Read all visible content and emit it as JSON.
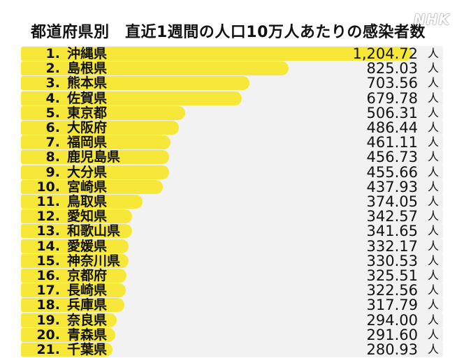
{
  "header": {
    "title": "都道府県別　直近1週間の人口10万人あたりの感染者数",
    "watermark": "NHK"
  },
  "chart_data": {
    "type": "bar",
    "orientation": "horizontal",
    "title": "都道府県別　直近1週間の人口10万人あたりの感染者数",
    "unit": "人",
    "xlim": [
      0,
      1300
    ],
    "rows": [
      {
        "rank": "1.",
        "prefecture": "沖縄県",
        "value": 1204.72,
        "label": "1,204.72"
      },
      {
        "rank": "2.",
        "prefecture": "島根県",
        "value": 825.03,
        "label": "825.03"
      },
      {
        "rank": "3.",
        "prefecture": "熊本県",
        "value": 703.56,
        "label": "703.56"
      },
      {
        "rank": "4.",
        "prefecture": "佐賀県",
        "value": 679.78,
        "label": "679.78"
      },
      {
        "rank": "5.",
        "prefecture": "東京都",
        "value": 506.31,
        "label": "506.31"
      },
      {
        "rank": "6.",
        "prefecture": "大阪府",
        "value": 486.44,
        "label": "486.44"
      },
      {
        "rank": "7.",
        "prefecture": "福岡県",
        "value": 461.11,
        "label": "461.11"
      },
      {
        "rank": "8.",
        "prefecture": "鹿児島県",
        "value": 456.73,
        "label": "456.73"
      },
      {
        "rank": "9.",
        "prefecture": "大分県",
        "value": 455.66,
        "label": "455.66"
      },
      {
        "rank": "10.",
        "prefecture": "宮崎県",
        "value": 437.93,
        "label": "437.93"
      },
      {
        "rank": "11.",
        "prefecture": "鳥取県",
        "value": 374.05,
        "label": "374.05"
      },
      {
        "rank": "12.",
        "prefecture": "愛知県",
        "value": 342.57,
        "label": "342.57"
      },
      {
        "rank": "13.",
        "prefecture": "和歌山県",
        "value": 341.65,
        "label": "341.65"
      },
      {
        "rank": "14.",
        "prefecture": "愛媛県",
        "value": 332.17,
        "label": "332.17"
      },
      {
        "rank": "15.",
        "prefecture": "神奈川県",
        "value": 330.53,
        "label": "330.53"
      },
      {
        "rank": "16.",
        "prefecture": "京都府",
        "value": 325.51,
        "label": "325.51"
      },
      {
        "rank": "17.",
        "prefecture": "長崎県",
        "value": 322.56,
        "label": "322.56"
      },
      {
        "rank": "18.",
        "prefecture": "兵庫県",
        "value": 317.79,
        "label": "317.79"
      },
      {
        "rank": "19.",
        "prefecture": "奈良県",
        "value": 294.0,
        "label": "294.00"
      },
      {
        "rank": "20.",
        "prefecture": "青森県",
        "value": 291.6,
        "label": "291.60"
      },
      {
        "rank": "21.",
        "prefecture": "千葉県",
        "value": 280.93,
        "label": "280.93"
      }
    ],
    "colors": {
      "bar": "#f6e739",
      "row_background": "#f2f2f2"
    },
    "grid": false,
    "legend": "none"
  }
}
